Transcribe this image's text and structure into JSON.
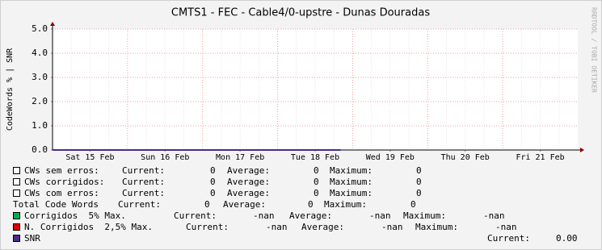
{
  "chart_data": {
    "type": "line",
    "title": "CMTS1 - FEC - Cable4/0-upstre - Dunas Douradas",
    "y_label": "CodeWords % | SNR",
    "watermark": "RRDTOOL / TOBI OETIKER",
    "xlim": [
      0,
      7
    ],
    "xticks": [
      {
        "value": 0.5,
        "label": "Sat 15 Feb"
      },
      {
        "value": 1.5,
        "label": "Sun 16 Feb"
      },
      {
        "value": 2.5,
        "label": "Mon 17 Feb"
      },
      {
        "value": 3.5,
        "label": "Tue 18 Feb"
      },
      {
        "value": 4.5,
        "label": "Wed 19 Feb"
      },
      {
        "value": 5.5,
        "label": "Thu 20 Feb"
      },
      {
        "value": 6.5,
        "label": "Fri 21 Feb"
      }
    ],
    "ylim": [
      0,
      5
    ],
    "yticks": [
      {
        "value": 0,
        "label": "0.0"
      },
      {
        "value": 1,
        "label": "1.0"
      },
      {
        "value": 2,
        "label": "2.0"
      },
      {
        "value": 3,
        "label": "3.0"
      },
      {
        "value": 4,
        "label": "4.0"
      },
      {
        "value": 5,
        "label": "5.0"
      }
    ],
    "grid": true,
    "series": [
      {
        "name": "SNR",
        "color": "#4b2a8c",
        "x": [
          0,
          3.84
        ],
        "values": [
          0,
          0
        ]
      }
    ],
    "legend": [
      {
        "label": "CWs sem erros:",
        "color": "#ffffff",
        "stats": [
          {
            "label": "Current:",
            "value": 0
          },
          {
            "label": "Average:",
            "value": 0
          },
          {
            "label": "Maximum:",
            "value": 0
          }
        ]
      },
      {
        "label": "CWs corrigidos:",
        "color": "#ffffff",
        "stats": [
          {
            "label": "Current:",
            "value": 0
          },
          {
            "label": "Average:",
            "value": 0
          },
          {
            "label": "Maximum:",
            "value": 0
          }
        ]
      },
      {
        "label": "CWs com erros:",
        "color": "#ffffff",
        "stats": [
          {
            "label": "Current:",
            "value": 0
          },
          {
            "label": "Average:",
            "value": 0
          },
          {
            "label": "Maximum:",
            "value": 0
          }
        ]
      },
      {
        "label": "Total Code Words",
        "color": null,
        "stats": [
          {
            "label": "Current:",
            "value": 0
          },
          {
            "label": "Average:",
            "value": 0
          },
          {
            "label": "Maximum:",
            "value": 0
          }
        ]
      },
      {
        "label": "Corrigidos  5% Max.",
        "color": "#00b050",
        "stats": [
          {
            "label": "Current:",
            "value": "-nan"
          },
          {
            "label": "Average:",
            "value": "-nan"
          },
          {
            "label": "Maximum:",
            "value": "-nan"
          }
        ]
      },
      {
        "label": "N. Corrigidos  2,5% Max.",
        "color": "#e00000",
        "stats": [
          {
            "label": "Current:",
            "value": "-nan"
          },
          {
            "label": "Average:",
            "value": "-nan"
          },
          {
            "label": "Maximum:",
            "value": "-nan"
          }
        ]
      },
      {
        "label": "SNR",
        "color": "#4b2a8c",
        "stats": [
          {
            "label": "Current:",
            "value": "0.00"
          }
        ]
      }
    ]
  }
}
